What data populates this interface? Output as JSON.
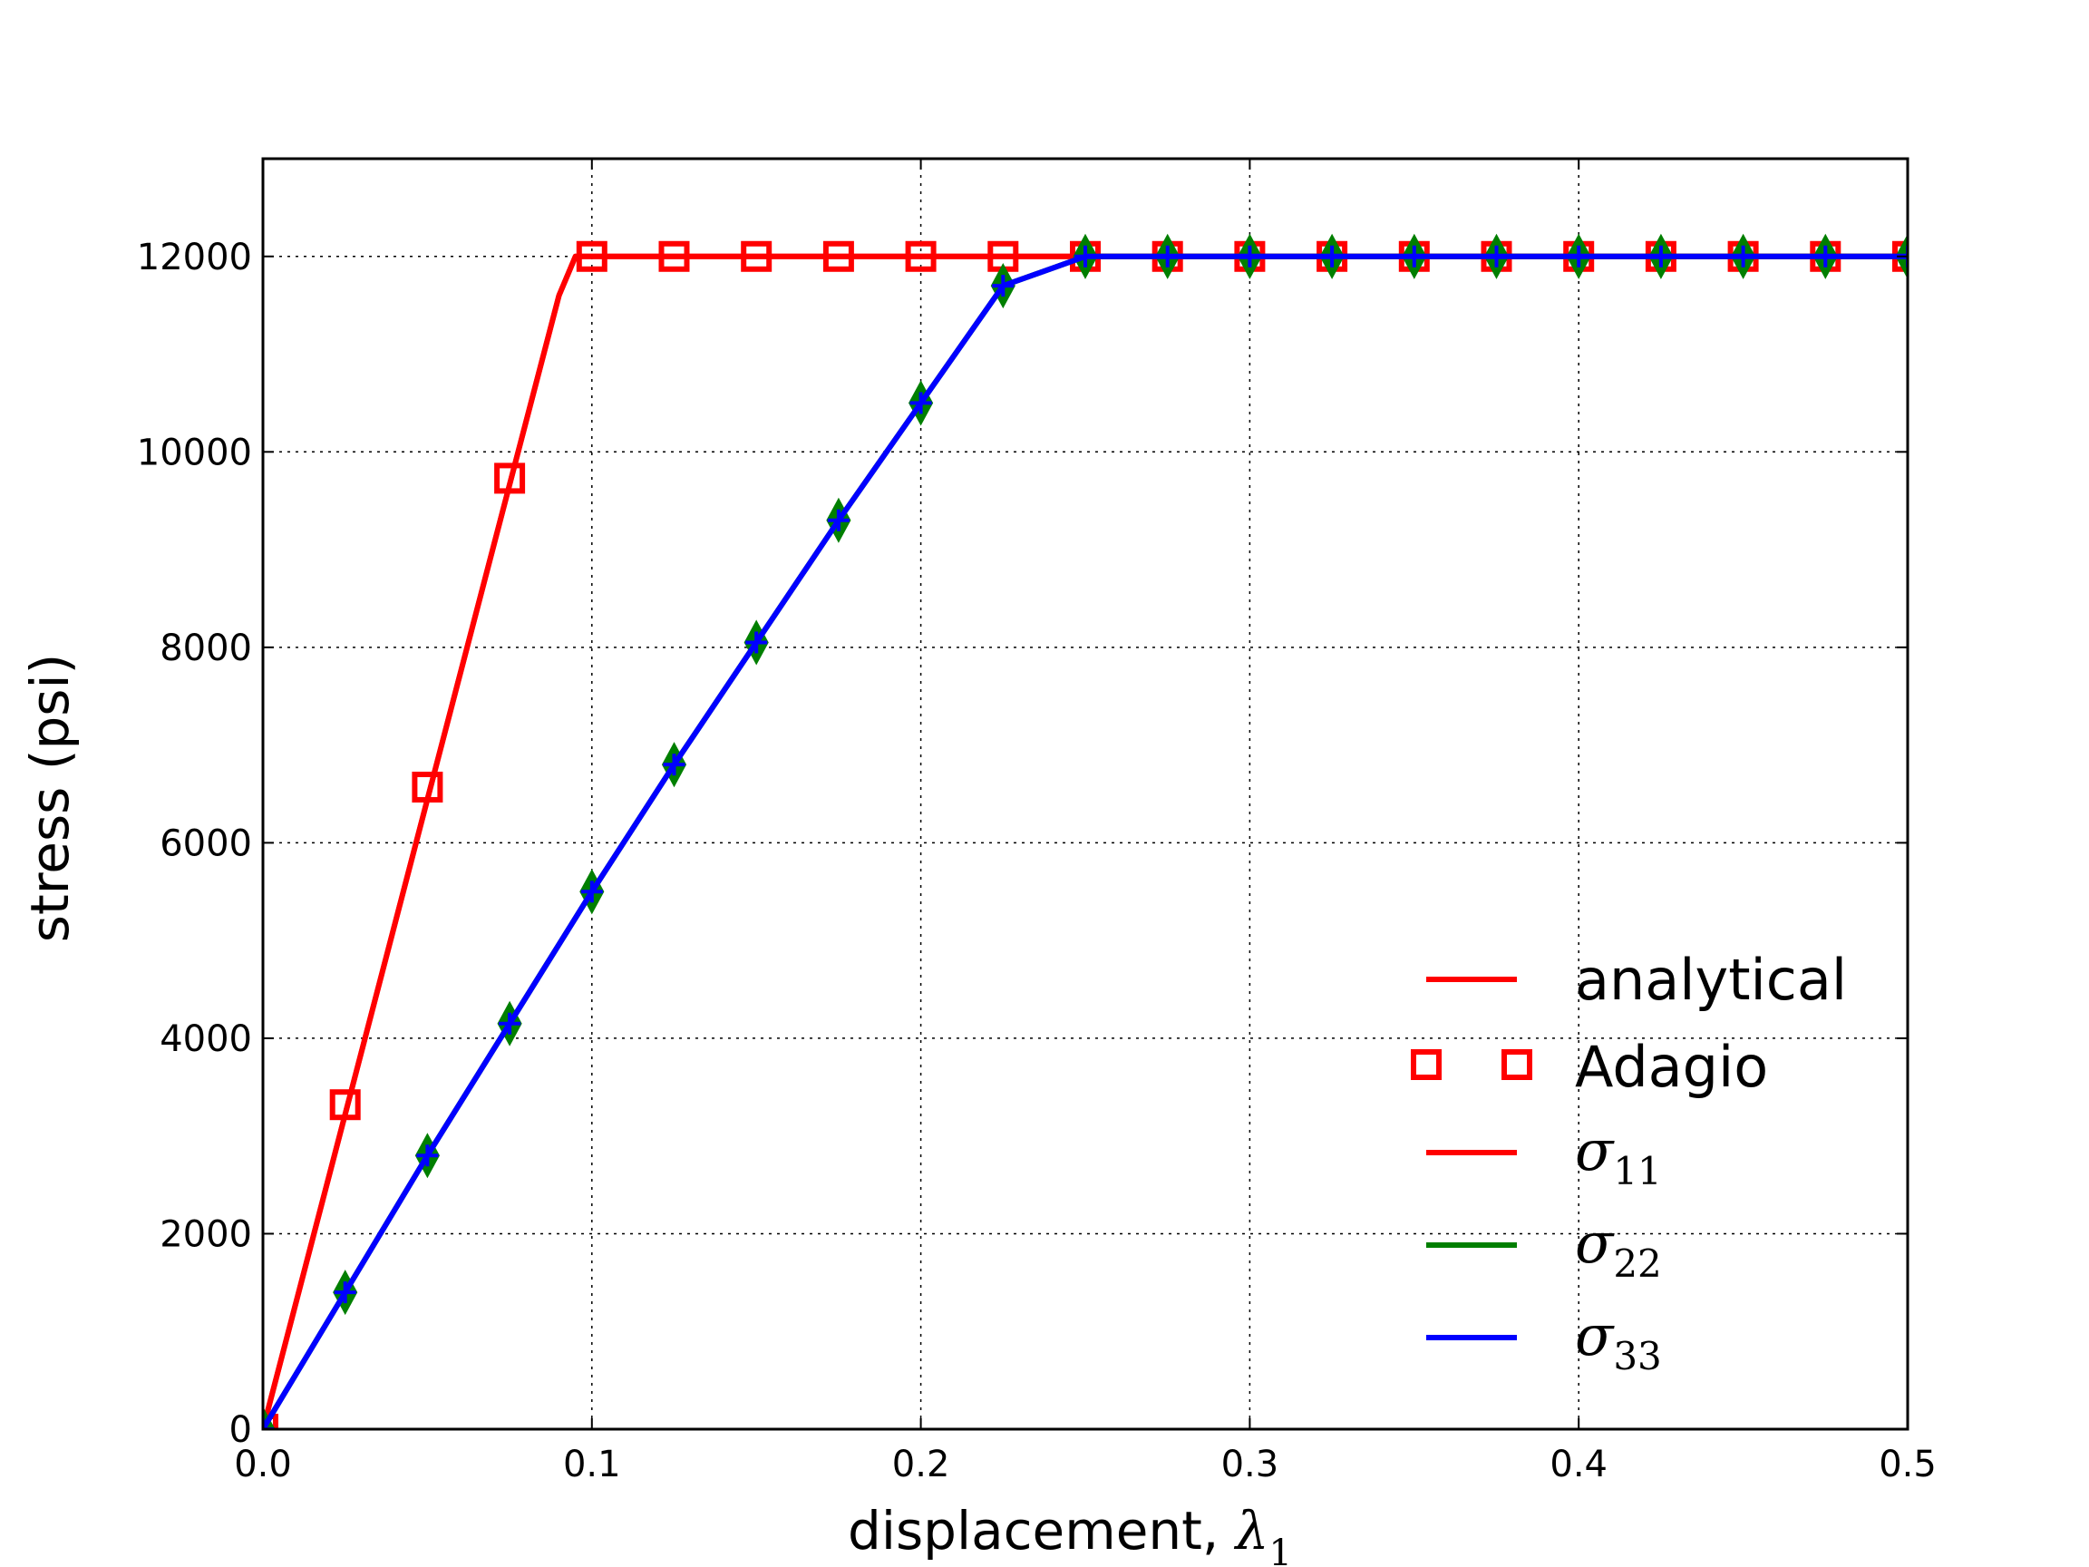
{
  "chart_data": {
    "type": "line",
    "xlabel_text": "displacement, ",
    "xlabel_symbol": "λ",
    "xlabel_sub": "1",
    "ylabel": "stress (psi)",
    "xlim": [
      0.0,
      0.5
    ],
    "ylim": [
      0,
      13000
    ],
    "x_ticks": [
      0.0,
      0.1,
      0.2,
      0.3,
      0.4,
      0.5
    ],
    "x_tick_labels": [
      "0.0",
      "0.1",
      "0.2",
      "0.3",
      "0.4",
      "0.5"
    ],
    "y_ticks": [
      0,
      2000,
      4000,
      6000,
      8000,
      10000,
      12000
    ],
    "y_tick_labels": [
      "0",
      "2000",
      "4000",
      "6000",
      "8000",
      "10000",
      "12000"
    ],
    "grid": true,
    "legend_position": "lower-right",
    "colors": {
      "red": "#ff0000",
      "green": "#007f00",
      "blue": "#0000ff",
      "axes": "#000000"
    },
    "series": [
      {
        "name": "analytical",
        "style": "line",
        "color": "#ff0000",
        "x": [
          0.0,
          0.09,
          0.095,
          0.1,
          0.5
        ],
        "y": [
          0,
          11600,
          12000,
          12000,
          12000
        ]
      },
      {
        "name": "Adagio",
        "style": "square-markers",
        "color": "#ff0000",
        "x": [
          0.0,
          0.025,
          0.05,
          0.075,
          0.1,
          0.125,
          0.15,
          0.175,
          0.2,
          0.225,
          0.25,
          0.275,
          0.3,
          0.325,
          0.35,
          0.375,
          0.4,
          0.425,
          0.45,
          0.475,
          0.5
        ],
        "y": [
          0,
          3320,
          6570,
          9730,
          12000,
          12000,
          12000,
          12000,
          12000,
          12000,
          12000,
          12000,
          12000,
          12000,
          12000,
          12000,
          12000,
          12000,
          12000,
          12000,
          12000
        ]
      },
      {
        "name": "σ11",
        "style": "line",
        "color": "#ff0000",
        "x": [
          0.0,
          0.09,
          0.095,
          0.1,
          0.5
        ],
        "y": [
          0,
          11600,
          12000,
          12000,
          12000
        ]
      },
      {
        "name": "σ22",
        "style": "line-diamond-markers",
        "color": "#007f00",
        "x": [
          0.0,
          0.025,
          0.05,
          0.075,
          0.1,
          0.125,
          0.15,
          0.175,
          0.2,
          0.225,
          0.25,
          0.275,
          0.3,
          0.325,
          0.35,
          0.375,
          0.4,
          0.425,
          0.45,
          0.475,
          0.5
        ],
        "y": [
          0,
          1400,
          2800,
          4150,
          5500,
          6800,
          8050,
          9300,
          10500,
          11700,
          12000,
          12000,
          12000,
          12000,
          12000,
          12000,
          12000,
          12000,
          12000,
          12000,
          12000
        ]
      },
      {
        "name": "σ33",
        "style": "line-plus-markers",
        "color": "#0000ff",
        "x": [
          0.0,
          0.025,
          0.05,
          0.075,
          0.1,
          0.125,
          0.15,
          0.175,
          0.2,
          0.225,
          0.25,
          0.275,
          0.3,
          0.325,
          0.35,
          0.375,
          0.4,
          0.425,
          0.45,
          0.475,
          0.5
        ],
        "y": [
          0,
          1400,
          2800,
          4150,
          5500,
          6800,
          8050,
          9300,
          10500,
          11700,
          12000,
          12000,
          12000,
          12000,
          12000,
          12000,
          12000,
          12000,
          12000,
          12000,
          12000
        ]
      }
    ],
    "legend": [
      {
        "label": "analytical",
        "style": "line",
        "color": "#ff0000"
      },
      {
        "label": "Adagio",
        "style": "square-markers",
        "color": "#ff0000"
      },
      {
        "symbol": "σ",
        "sub": "11",
        "style": "line",
        "color": "#ff0000"
      },
      {
        "symbol": "σ",
        "sub": "22",
        "style": "line",
        "color": "#007f00"
      },
      {
        "symbol": "σ",
        "sub": "33",
        "style": "line",
        "color": "#0000ff"
      }
    ]
  }
}
